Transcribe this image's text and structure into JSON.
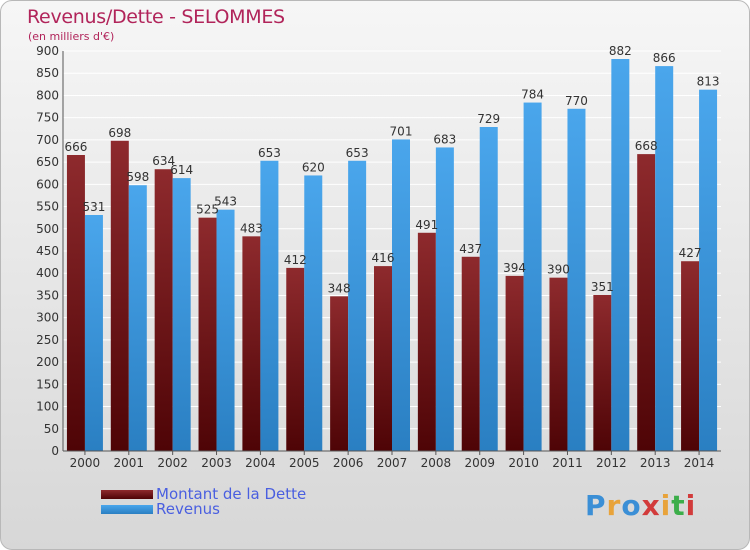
{
  "header": {
    "title": "Revenus/Dette - SELOMMES",
    "subtitle": "(en milliers d'€)"
  },
  "logo": {
    "text": "Proxiti"
  },
  "chart_data": {
    "type": "bar",
    "categories": [
      "2000",
      "2001",
      "2002",
      "2003",
      "2004",
      "2005",
      "2006",
      "2007",
      "2008",
      "2009",
      "2010",
      "2011",
      "2012",
      "2013",
      "2014"
    ],
    "series": [
      {
        "name": "Montant de la Dette",
        "color": "#7a1518",
        "values": [
          666,
          698,
          634,
          525,
          483,
          412,
          348,
          416,
          491,
          437,
          394,
          390,
          351,
          668,
          427
        ]
      },
      {
        "name": "Revenus",
        "color": "#3d9be2",
        "values": [
          531,
          598,
          614,
          543,
          653,
          620,
          653,
          701,
          683,
          729,
          784,
          770,
          882,
          866,
          813
        ]
      }
    ],
    "ylim": [
      0,
      900
    ],
    "ytick_step": 50,
    "grid": true,
    "legend_position": "bottom-left"
  }
}
